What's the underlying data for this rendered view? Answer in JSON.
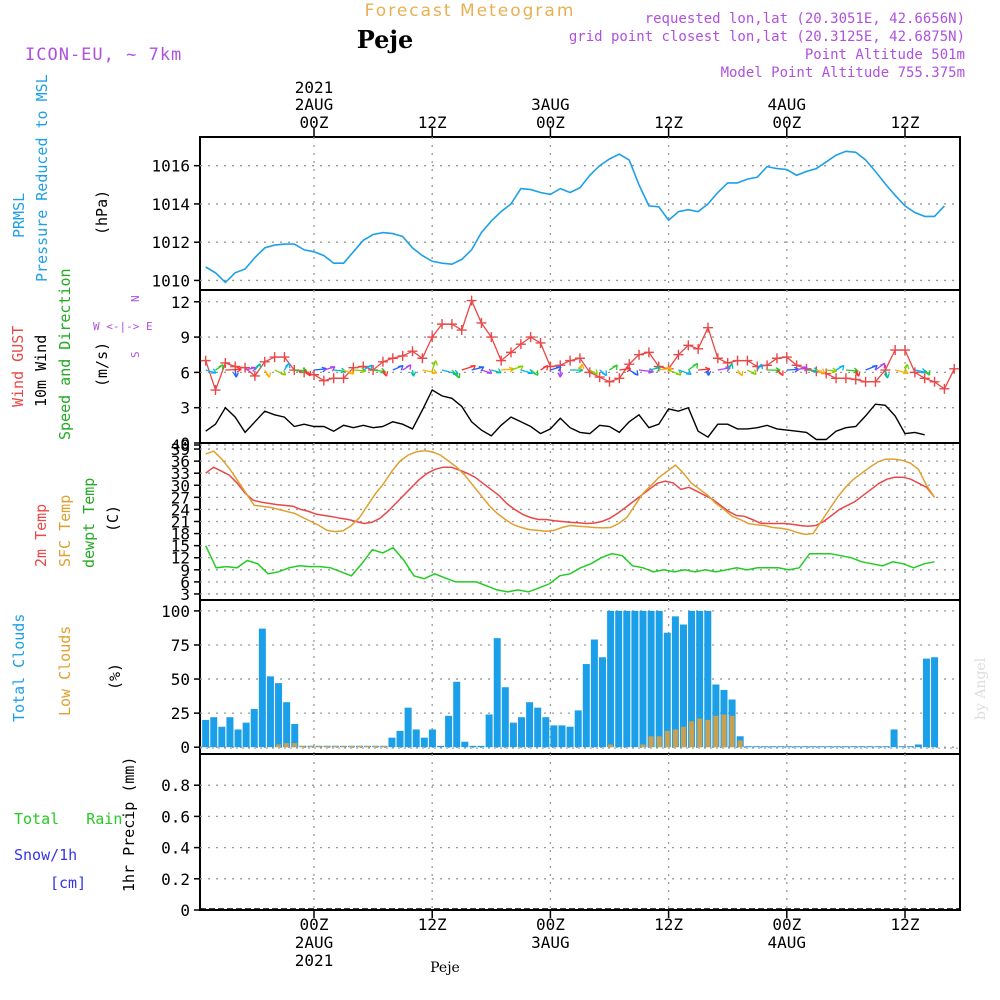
{
  "header": {
    "title": "Forecast Meteogram",
    "location": "Peje",
    "model": "ICON-EU, ~ 7km",
    "requested": "requested lon,lat (20.3051E, 42.6656N)",
    "grid_point": "grid point closest lon,lat (20.3125E, 42.6875N)",
    "point_altitude": "Point Altitude 501m",
    "model_altitude": "Model Point Altitude 755.375m",
    "credit": "by Angel",
    "footer_location": "Peje"
  },
  "time_axis": {
    "top_year": "2021",
    "bottom_year": "2021",
    "ticks": [
      {
        "label": "00Z",
        "date": "2AUG",
        "hour": 0
      },
      {
        "label": "12Z",
        "date": "",
        "hour": 12
      },
      {
        "label": "00Z",
        "date": "3AUG",
        "hour": 24
      },
      {
        "label": "12Z",
        "date": "",
        "hour": 36
      },
      {
        "label": "00Z",
        "date": "4AUG",
        "hour": 48
      },
      {
        "label": "12Z",
        "date": "",
        "hour": 60
      }
    ]
  },
  "labels": {
    "pressure": [
      "PRMSL",
      "Pressure Reduced to MSL",
      "(hPa)"
    ],
    "wind": [
      "Wind GUST",
      "10m Wind",
      "Speed and Direction",
      "(m/s)"
    ],
    "compass": [
      "N",
      "W <-|-> E",
      "S"
    ],
    "temp": [
      "2m Temp",
      "SFC Temp",
      "dewpt Temp",
      "(C)"
    ],
    "clouds": [
      "Total Clouds",
      "Low Clouds",
      "(%)"
    ],
    "precip": [
      "Total   Rain",
      "Snow/1h",
      "[cm]",
      "1hr Precip (mm)"
    ]
  },
  "colors": {
    "pressure": "#1ea0e6",
    "gust": "#e84848",
    "wind": "#000000",
    "temp2m": "#e84848",
    "sfc": "#e0a030",
    "dew": "#22cc22",
    "total_clouds": "#1a9fe8",
    "low_clouds": "#c8a050",
    "rain": "#22cc22",
    "snow": "#3333ee",
    "purple": "#b050e0",
    "orange": "#e8b050"
  },
  "chart_data": [
    {
      "type": "line",
      "title": "PRMSL Pressure Reduced to MSL",
      "ylabel": "(hPa)",
      "ylim": [
        1009.5,
        1017.5
      ],
      "yticks": [
        1010,
        1012,
        1014,
        1016
      ],
      "x_start_hour": -11,
      "x_step_hour": 1,
      "series": [
        {
          "name": "PRMSL",
          "values": [
            1010.7,
            1010.4,
            1009.9,
            1010.4,
            1010.6,
            1011.2,
            1011.7,
            1011.85,
            1011.9,
            1011.9,
            1011.6,
            1011.5,
            1011.3,
            1010.9,
            1010.9,
            1011.5,
            1012.1,
            1012.4,
            1012.5,
            1012.45,
            1012.3,
            1011.7,
            1011.3,
            1011.0,
            1010.9,
            1010.85,
            1011.1,
            1011.6,
            1012.5,
            1013.1,
            1013.6,
            1014.0,
            1014.8,
            1014.75,
            1014.6,
            1014.5,
            1014.8,
            1014.6,
            1014.85,
            1015.5,
            1016.0,
            1016.35,
            1016.6,
            1016.3,
            1015.0,
            1013.9,
            1013.85,
            1013.15,
            1013.6,
            1013.7,
            1013.6,
            1014.0,
            1014.6,
            1015.1,
            1015.1,
            1015.3,
            1015.4,
            1015.95,
            1015.85,
            1015.8,
            1015.5,
            1015.7,
            1015.85,
            1016.2,
            1016.55,
            1016.75,
            1016.7,
            1016.3,
            1015.7,
            1015.05,
            1014.45,
            1013.9,
            1013.55,
            1013.35,
            1013.35,
            1013.9
          ]
        }
      ]
    },
    {
      "type": "line",
      "title": "Wind GUST / 10m Wind Speed and Direction",
      "ylabel": "(m/s)",
      "ylim": [
        0,
        13
      ],
      "yticks": [
        0,
        3,
        6,
        9,
        12
      ],
      "x_start_hour": -11,
      "x_step_hour": 1,
      "series": [
        {
          "name": "Wind GUST",
          "values": [
            7.0,
            4.5,
            6.8,
            6.5,
            6.4,
            5.7,
            6.9,
            7.3,
            7.3,
            6.2,
            6.0,
            5.8,
            5.3,
            5.5,
            5.5,
            6.4,
            6.5,
            6.2,
            6.9,
            7.2,
            7.4,
            7.8,
            7.2,
            9.0,
            10.1,
            10.1,
            9.6,
            12.1,
            10.2,
            9.0,
            7.0,
            7.7,
            8.4,
            9.0,
            8.5,
            6.5,
            6.6,
            7.0,
            7.2,
            6.0,
            5.6,
            5.2,
            5.5,
            6.7,
            7.5,
            7.7,
            6.5,
            6.3,
            7.5,
            8.3,
            8.0,
            9.8,
            7.2,
            6.8,
            7.0,
            7.0,
            6.5,
            6.6,
            7.2,
            7.3,
            6.6,
            6.3,
            6.1,
            5.9,
            5.5,
            5.5,
            5.4,
            5.2,
            5.2,
            6.2,
            7.9,
            7.9,
            6.0,
            5.5,
            5.2,
            4.6,
            6.3
          ]
        },
        {
          "name": "10m Wind",
          "values": [
            1.0,
            1.6,
            3.0,
            2.2,
            0.9,
            1.8,
            2.7,
            2.4,
            2.2,
            1.4,
            1.6,
            1.4,
            1.4,
            1.0,
            1.5,
            1.3,
            1.5,
            1.3,
            1.4,
            1.8,
            1.6,
            1.2,
            2.8,
            4.5,
            4.0,
            3.8,
            3.1,
            1.8,
            1.1,
            0.6,
            1.5,
            2.2,
            1.8,
            1.4,
            0.8,
            1.2,
            2.1,
            1.3,
            0.9,
            0.8,
            1.5,
            1.4,
            0.9,
            1.8,
            2.4,
            1.3,
            1.6,
            2.9,
            2.7,
            3.0,
            1.0,
            0.5,
            1.6,
            1.6,
            1.2,
            1.2,
            1.3,
            1.5,
            1.2,
            1.1,
            1.0,
            0.9,
            0.3,
            0.3,
            1.0,
            1.3,
            1.4,
            2.3,
            3.3,
            3.2,
            2.3,
            0.8,
            0.9,
            0.7
          ]
        }
      ]
    },
    {
      "type": "line",
      "title": "2m Temp / SFC Temp / dewpt Temp",
      "ylabel": "(C)",
      "ylim": [
        1.5,
        40.5
      ],
      "yticks": [
        3,
        6,
        9,
        12,
        15,
        18,
        21,
        24,
        27,
        30,
        33,
        36,
        39,
        40
      ],
      "x_start_hour": -11,
      "x_step_hour": 1,
      "series": [
        {
          "name": "2m Temp",
          "values": [
            33,
            34.5,
            33.5,
            32.5,
            30.5,
            28,
            26.3,
            25.8,
            25.5,
            25.2,
            25,
            24.8,
            24,
            23.5,
            22.8,
            22.5,
            22.2,
            21.8,
            21.5,
            21,
            20.5,
            20.8,
            21.8,
            23.5,
            25.5,
            27.5,
            29.5,
            31.5,
            33,
            34,
            34.5,
            34.5,
            33.8,
            33,
            32,
            30.5,
            29,
            27.5,
            25.5,
            24,
            22.8,
            22,
            21.5,
            21.5,
            21.2,
            21,
            20.8,
            20.7,
            20.5,
            20.6,
            21,
            21.8,
            23,
            24.5,
            26,
            27.5,
            29,
            30.5,
            31,
            30.6,
            29,
            29.5,
            28.5,
            27.5,
            26.5,
            25,
            23.5,
            22.5,
            22.3,
            21.5,
            20.6,
            20.5,
            20.5,
            20.5,
            20.3,
            20,
            19.8,
            20,
            21,
            22.5,
            24,
            25,
            26,
            27.5,
            29,
            30.5,
            31.5,
            32,
            32,
            31.5,
            30.5,
            29.5,
            27
          ]
        },
        {
          "name": "SFC Temp",
          "values": [
            37.8,
            38.5,
            36.5,
            34,
            31,
            28,
            25,
            24.8,
            24.5,
            24,
            23.5,
            23,
            22,
            21,
            20,
            18.8,
            18.5,
            18.7,
            20,
            22,
            25,
            28,
            30.5,
            33.5,
            36,
            37.5,
            38.3,
            38.6,
            38.3,
            37.5,
            36,
            34.5,
            32.5,
            30,
            27.5,
            25,
            23,
            21.5,
            20.2,
            19.5,
            19,
            18.8,
            18.6,
            18.8,
            19.5,
            20,
            19.8,
            19.7,
            19.5,
            19.4,
            19.5,
            20.5,
            22,
            25,
            28,
            30,
            32,
            33.5,
            35,
            33,
            30.5,
            29,
            27.5,
            25.5,
            24,
            22.3,
            21.5,
            20.5,
            20.2,
            20,
            19.5,
            19.3,
            19,
            18.3,
            17.8,
            18,
            21,
            24,
            27,
            29.5,
            31.5,
            33,
            34.5,
            35.8,
            36.5,
            36.5,
            36.2,
            35.5,
            34,
            30,
            27
          ]
        },
        {
          "name": "dewpt Temp",
          "values": [
            15,
            9.5,
            9.8,
            9.5,
            11.3,
            10.5,
            8,
            8.5,
            9.5,
            10,
            9.8,
            9.8,
            9.5,
            8.5,
            7.5,
            10.5,
            14,
            13.2,
            14.5,
            11.5,
            7.5,
            6.8,
            8,
            7,
            6,
            6,
            6,
            5,
            4,
            3.5,
            4,
            3.5,
            4.5,
            5.5,
            7.5,
            8,
            9.5,
            10.5,
            12,
            13,
            12.5,
            10,
            9.5,
            8.5,
            9,
            8.5,
            9,
            8.5,
            9,
            8.5,
            9,
            9.5,
            9,
            9.5,
            9.5,
            9.5,
            9,
            9.5,
            13,
            13,
            13,
            12.5,
            12,
            11,
            10.5,
            10,
            11,
            10.5,
            9.5,
            10.5,
            11
          ]
        }
      ]
    },
    {
      "type": "bar",
      "title": "Total Clouds / Low Clouds",
      "ylabel": "(%)",
      "ylim": [
        -5,
        108
      ],
      "yticks": [
        0,
        25,
        50,
        75,
        100
      ],
      "x_start_hour": -11,
      "x_step_hour": 1,
      "series": [
        {
          "name": "Total Clouds",
          "values": [
            20,
            22,
            15,
            22,
            13,
            18,
            28,
            87,
            52,
            47,
            33,
            17,
            1,
            1,
            1,
            1,
            1,
            1,
            1,
            1,
            1,
            1,
            1,
            7,
            12,
            29,
            13,
            7,
            13,
            1,
            23,
            48,
            4,
            1,
            1,
            24,
            80,
            44,
            18,
            22,
            33,
            29,
            22,
            16,
            16,
            15,
            27,
            61,
            79,
            66,
            100,
            100,
            100,
            100,
            100,
            100,
            100,
            84,
            96,
            90,
            100,
            100,
            100,
            46,
            42,
            35,
            8,
            0,
            0,
            0,
            0,
            0,
            0,
            0,
            0,
            0,
            0,
            0,
            0,
            0,
            0,
            0,
            0,
            0,
            0,
            13,
            0,
            0,
            2,
            65,
            66
          ]
        },
        {
          "name": "Low Clouds",
          "values": [
            0,
            0,
            0,
            0,
            0,
            0,
            0,
            0,
            0,
            2,
            3,
            3,
            1,
            1,
            1,
            1,
            1,
            1,
            1,
            1,
            1,
            1,
            1,
            0,
            0,
            0,
            0,
            0,
            0,
            0,
            0,
            0,
            0,
            0,
            0,
            0,
            0,
            0,
            0,
            0,
            0,
            0,
            0,
            0,
            0,
            0,
            0,
            0,
            0,
            0,
            2,
            0,
            0,
            0,
            2,
            8,
            8,
            12,
            13,
            15,
            19,
            21,
            20,
            23,
            24,
            23,
            5,
            0,
            0,
            0,
            0,
            0,
            0,
            0,
            0,
            0,
            0,
            0,
            0,
            0,
            0,
            0,
            0,
            0,
            0,
            0,
            0,
            0,
            0,
            0,
            0
          ]
        }
      ]
    },
    {
      "type": "bar",
      "title": "1hr Precip",
      "ylabel": "1hr Precip (mm)",
      "ylim": [
        0,
        1.0
      ],
      "yticks": [
        0,
        0.2,
        0.4,
        0.6,
        0.8
      ],
      "x_start_hour": -11,
      "x_step_hour": 1,
      "series": [
        {
          "name": "Total Rain",
          "values": []
        },
        {
          "name": "Snow/1h",
          "values": []
        }
      ]
    }
  ]
}
